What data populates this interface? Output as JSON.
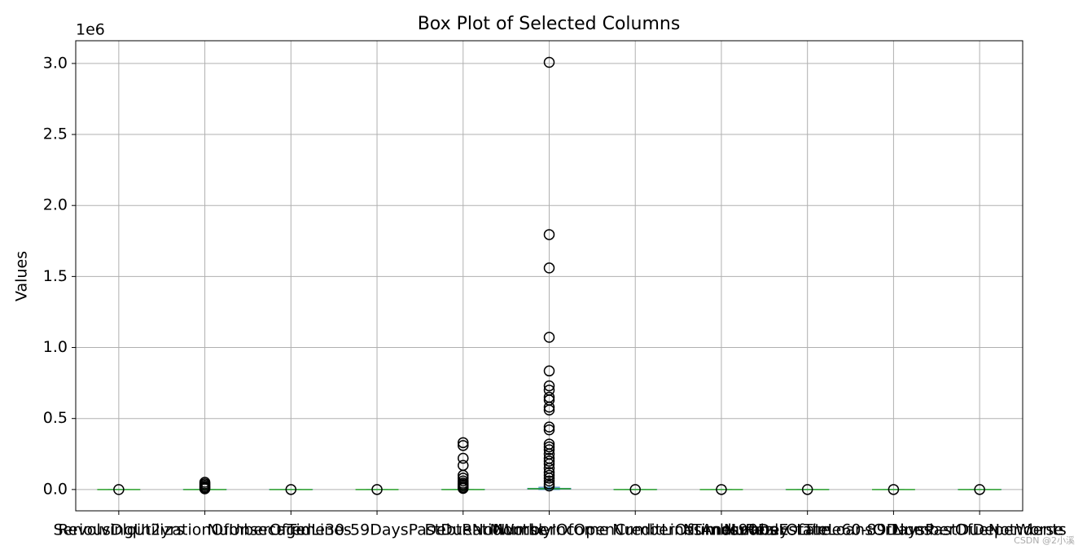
{
  "chart_data": {
    "type": "box",
    "title": "Box Plot of Selected Columns",
    "y_label": "Values",
    "y_offset_label": "1e6",
    "categories": [
      "SeriousDlqin2yrs",
      "RevolvingUtilizationOfUnsecuredLines",
      "age",
      "NumberOfTime30-59DaysPastDueNotWorse",
      "DebtRatio",
      "MonthlyIncome",
      "NumberOfOpenCreditLinesAndLoans",
      "NumberOfTimes90DaysLate",
      "NumberRealEstateLoansOrLines",
      "NumberOfTime60-89DaysPastDueNotWorse",
      "NumberOfDependents"
    ],
    "boxes": [
      {
        "whislo": 0,
        "q1": 0,
        "median": 0,
        "q3": 0,
        "whishi": 0,
        "fliers": [
          1e-06
        ]
      },
      {
        "whislo": 0,
        "q1": 3e-08,
        "median": 1.5e-07,
        "q3": 5.6e-07,
        "whishi": 1.3e-06,
        "fliers": [
          0.051,
          0.04,
          0.03,
          0.02,
          0.012,
          0.005
        ]
      },
      {
        "whislo": 2.1e-05,
        "q1": 4.1e-05,
        "median": 5.2e-05,
        "q3": 6.3e-05,
        "whishi": 9.6e-05,
        "fliers": [
          0.000107
        ]
      },
      {
        "whislo": 0,
        "q1": 0,
        "median": 0,
        "q3": 0,
        "whishi": 0,
        "fliers": [
          9.8e-05
        ]
      },
      {
        "whislo": 0,
        "q1": 1.8e-07,
        "median": 3.7e-07,
        "q3": 8.7e-07,
        "whishi": 1.9e-06,
        "fliers": [
          0.33,
          0.31,
          0.22,
          0.17,
          0.1,
          0.08,
          0.06,
          0.045,
          0.035,
          0.025,
          0.015,
          0.008
        ]
      },
      {
        "whislo": 0,
        "q1": 0.0034,
        "median": 0.0054,
        "q3": 0.0083,
        "whishi": 0.0156,
        "fliers": [
          3.008,
          1.795,
          1.56,
          1.072,
          0.835,
          0.73,
          0.7,
          0.65,
          0.63,
          0.58,
          0.56,
          0.44,
          0.42,
          0.32,
          0.3,
          0.28,
          0.25,
          0.22,
          0.2,
          0.18,
          0.15,
          0.12,
          0.1,
          0.08,
          0.06,
          0.04,
          0.025
        ]
      },
      {
        "whislo": 0,
        "q1": 5e-06,
        "median": 8e-06,
        "q3": 1.1e-05,
        "whishi": 2e-05,
        "fliers": [
          5.8e-05
        ]
      },
      {
        "whislo": 0,
        "q1": 0,
        "median": 0,
        "q3": 0,
        "whishi": 0,
        "fliers": [
          9.8e-05
        ]
      },
      {
        "whislo": 0,
        "q1": 0,
        "median": 1e-06,
        "q3": 2e-06,
        "whishi": 5e-06,
        "fliers": [
          5.4e-05
        ]
      },
      {
        "whislo": 0,
        "q1": 0,
        "median": 0,
        "q3": 0,
        "whishi": 0,
        "fliers": [
          9.8e-05
        ]
      },
      {
        "whislo": 0,
        "q1": 0,
        "median": 0,
        "q3": 1e-06,
        "whishi": 2.5e-06,
        "fliers": [
          2e-05
        ]
      }
    ],
    "box_color": "#1f77b4",
    "median_color": "#2ca02c",
    "flier_color": "#000000",
    "ylim": [
      -0.15,
      3.16
    ],
    "yticks": [
      {
        "value": 0,
        "label": "0.0"
      },
      0.5,
      {
        "value": 1,
        "label": "1.0"
      },
      1.5,
      {
        "value": 2,
        "label": "2.0"
      },
      2.5,
      {
        "value": 3,
        "label": "3.0"
      }
    ],
    "grid": true
  },
  "watermark": "CSDN @2小溪"
}
